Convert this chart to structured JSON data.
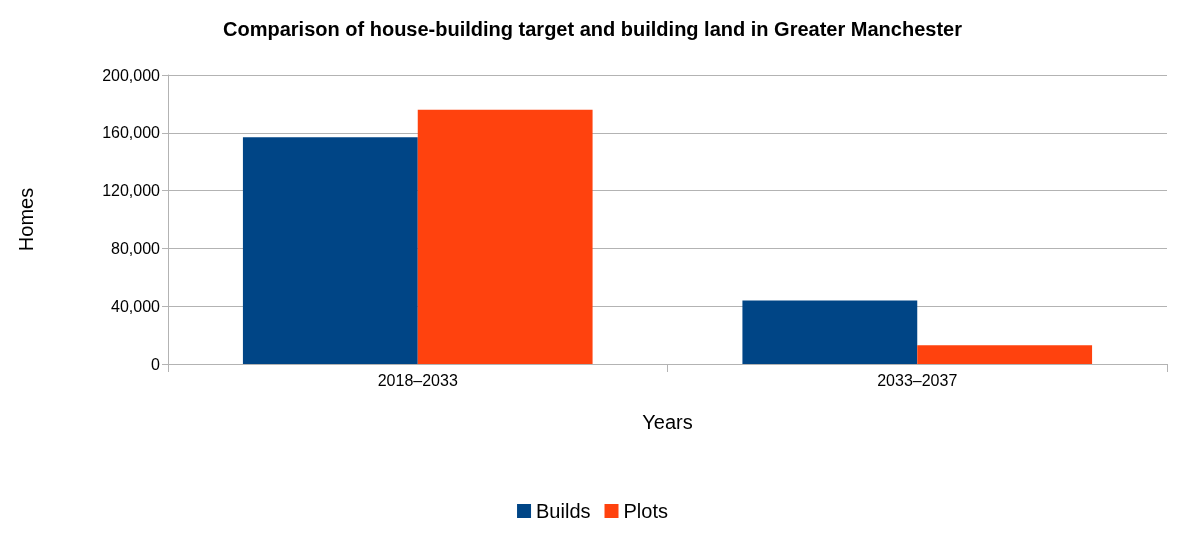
{
  "chart_data": {
    "type": "bar",
    "title": "Comparison of house-building target and building land in Greater Manchester",
    "xlabel": "Years",
    "ylabel": "Homes",
    "categories": [
      "2018–2033",
      "2033–2037"
    ],
    "series": [
      {
        "name": "Builds",
        "color": "#004586",
        "values": [
          157000,
          44000
        ]
      },
      {
        "name": "Plots",
        "color": "#ff420e",
        "values": [
          176000,
          13000
        ]
      }
    ],
    "ylim": [
      0,
      200000
    ],
    "yticks": [
      {
        "value": 0,
        "label": "0"
      },
      {
        "value": 40000,
        "label": "40,000"
      },
      {
        "value": 80000,
        "label": "80,000"
      },
      {
        "value": 120000,
        "label": "120,000"
      },
      {
        "value": 160000,
        "label": "160,000"
      },
      {
        "value": 200000,
        "label": "200,000"
      }
    ],
    "grid": "y",
    "legend": "bottom"
  }
}
